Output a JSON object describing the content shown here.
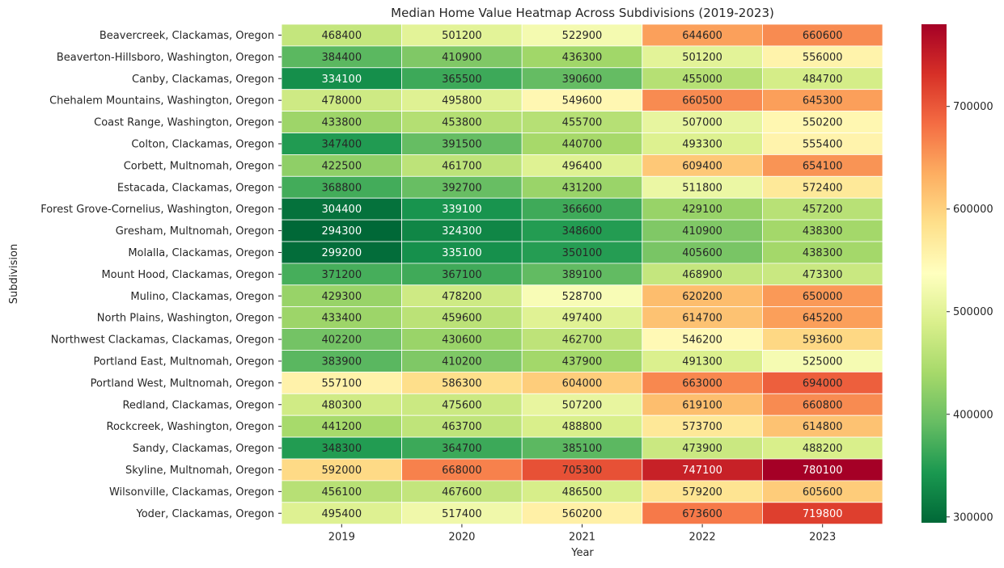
{
  "chart_data": {
    "type": "heatmap",
    "title": "Median Home Value Heatmap Across Subdivisions (2019-2023)",
    "xlabel": "Year",
    "ylabel": "Subdivision",
    "x": [
      "2019",
      "2020",
      "2021",
      "2022",
      "2023"
    ],
    "y": [
      "Beavercreek, Clackamas, Oregon",
      "Beaverton-Hillsboro, Washington, Oregon",
      "Canby, Clackamas, Oregon",
      "Chehalem Mountains, Washington, Oregon",
      "Coast Range, Washington, Oregon",
      "Colton, Clackamas, Oregon",
      "Corbett, Multnomah, Oregon",
      "Estacada, Clackamas, Oregon",
      "Forest Grove-Cornelius, Washington, Oregon",
      "Gresham, Multnomah, Oregon",
      "Molalla, Clackamas, Oregon",
      "Mount Hood, Clackamas, Oregon",
      "Mulino, Clackamas, Oregon",
      "North Plains, Washington, Oregon",
      "Northwest Clackamas, Clackamas, Oregon",
      "Portland East, Multnomah, Oregon",
      "Portland West, Multnomah, Oregon",
      "Redland, Clackamas, Oregon",
      "Rockcreek, Washington, Oregon",
      "Sandy, Clackamas, Oregon",
      "Skyline, Multnomah, Oregon",
      "Wilsonville, Clackamas, Oregon",
      "Yoder, Clackamas, Oregon"
    ],
    "values": [
      [
        468400,
        501200,
        522900,
        644600,
        660600
      ],
      [
        384400,
        410900,
        436300,
        501200,
        556000
      ],
      [
        334100,
        365500,
        390600,
        455000,
        484700
      ],
      [
        478000,
        495800,
        549600,
        660500,
        645300
      ],
      [
        433800,
        453800,
        455700,
        507000,
        550200
      ],
      [
        347400,
        391500,
        440700,
        493300,
        555400
      ],
      [
        422500,
        461700,
        496400,
        609400,
        654100
      ],
      [
        368800,
        392700,
        431200,
        511800,
        572400
      ],
      [
        304400,
        339100,
        366600,
        429100,
        457200
      ],
      [
        294300,
        324300,
        348600,
        410900,
        438300
      ],
      [
        299200,
        335100,
        350100,
        405600,
        438300
      ],
      [
        371200,
        367100,
        389100,
        468900,
        473300
      ],
      [
        429300,
        478200,
        528700,
        620200,
        650000
      ],
      [
        433400,
        459600,
        497400,
        614700,
        645200
      ],
      [
        402200,
        430600,
        462700,
        546200,
        593600
      ],
      [
        383900,
        410200,
        437900,
        491300,
        525000
      ],
      [
        557100,
        586300,
        604000,
        663000,
        694000
      ],
      [
        480300,
        475600,
        507200,
        619100,
        660800
      ],
      [
        441200,
        463700,
        488800,
        573700,
        614800
      ],
      [
        348300,
        364700,
        385100,
        473900,
        488200
      ],
      [
        592000,
        668000,
        705300,
        747100,
        780100
      ],
      [
        456100,
        467600,
        486500,
        579200,
        605600
      ],
      [
        495400,
        517400,
        560200,
        673600,
        719800
      ]
    ],
    "colormap": "RdYlGn_r",
    "colormap_stops": [
      "#006837",
      "#1a9850",
      "#66bd63",
      "#a6d96a",
      "#d9ef8b",
      "#ffffbf",
      "#fee08b",
      "#fdae61",
      "#f46d43",
      "#d73027",
      "#a50026"
    ],
    "vmin": 294300,
    "vmax": 780100,
    "colorbar_ticks": [
      "300000",
      "400000",
      "500000",
      "600000",
      "700000"
    ],
    "annotations": true,
    "grid": false
  }
}
